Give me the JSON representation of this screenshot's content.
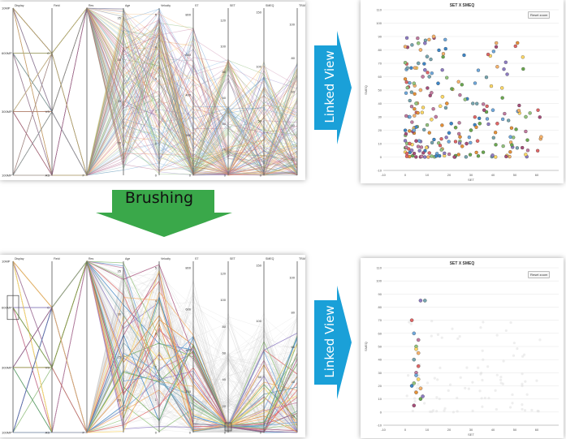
{
  "parallel_coords": {
    "axes": [
      "Display",
      "Field",
      "Res",
      "Age",
      "Velocity",
      "ST",
      "SET",
      "SMEQ",
      "TRANSL"
    ],
    "display_labels": [
      "10MP",
      "600MP",
      "300MP",
      "100MP"
    ],
    "field_labels": [
      "C",
      "VS",
      "AS"
    ],
    "res_label": "F",
    "age_ticks": [
      "35",
      "30",
      "25",
      "20"
    ],
    "velocity_ticks": [
      "5",
      "4",
      "3",
      "2",
      "1",
      "0"
    ],
    "st_ticks": [
      "800",
      "600",
      "400",
      "200",
      "0"
    ],
    "set_ticks": [
      "120",
      "100",
      "80",
      "60",
      "40",
      "20",
      "0"
    ],
    "smeq_ticks": [
      "150",
      "100",
      "50",
      "0"
    ],
    "transl_ticks": [
      "100",
      "80",
      "60",
      "40",
      "20"
    ]
  },
  "arrows": {
    "linked_view_top": "Linked View",
    "linked_view_bottom": "Linked View",
    "brushing": "Brushing",
    "colors": {
      "linked": "#1aa0d8",
      "brushing": "#3aa84a"
    }
  },
  "scatter_top": {
    "title": "SET X SMEQ",
    "reset_label": "Reset zoom",
    "ylabel": "SMEQ",
    "xlabel": "SET",
    "y_ticks": [
      "110",
      "100",
      "90",
      "80",
      "70",
      "60",
      "50",
      "40",
      "30",
      "20",
      "10",
      "0",
      "-10"
    ],
    "x_ticks": [
      "-10",
      "0",
      "10",
      "20",
      "30",
      "40",
      "50",
      "60"
    ]
  },
  "scatter_bottom": {
    "title": "SET X SMEQ",
    "reset_label": "Reset zoom",
    "ylabel": "SMEQ",
    "xlabel": "SET",
    "y_ticks": [
      "110",
      "100",
      "90",
      "80",
      "70",
      "60",
      "50",
      "40",
      "30",
      "20",
      "10",
      "0",
      "-10"
    ],
    "x_ticks": [
      "-10",
      "0",
      "10",
      "20",
      "30",
      "40",
      "50",
      "60"
    ]
  },
  "chart_data": [
    {
      "type": "scatter",
      "title": "SET X SMEQ",
      "xlabel": "SET",
      "ylabel": "SMEQ",
      "xlim": [
        -10,
        70
      ],
      "ylim": [
        -10,
        110
      ],
      "series": [
        {
          "x": [
            2,
            4,
            5,
            7,
            9,
            11,
            14,
            17,
            21,
            25,
            30,
            36,
            42,
            48,
            55,
            62,
            3,
            6,
            8,
            12,
            15,
            19,
            23,
            28,
            33,
            40,
            6,
            7,
            9,
            10,
            12,
            16,
            20,
            26,
            34,
            5,
            11,
            2,
            4,
            13
          ],
          "y": [
            10,
            20,
            40,
            50,
            85,
            60,
            30,
            45,
            25,
            15,
            20,
            35,
            25,
            15,
            30,
            15,
            5,
            70,
            60,
            28,
            55,
            40,
            22,
            10,
            12,
            35,
            85,
            80,
            65,
            75,
            48,
            38,
            18,
            8,
            25,
            12,
            3,
            30,
            55,
            90
          ]
        }
      ]
    },
    {
      "type": "scatter",
      "title": "SET X SMEQ",
      "xlabel": "SET",
      "ylabel": "SMEQ",
      "xlim": [
        -10,
        70
      ],
      "ylim": [
        -10,
        110
      ],
      "series": [
        {
          "x": [
            3,
            4,
            5,
            6,
            7,
            4,
            5,
            6,
            3,
            5,
            7,
            4,
            6,
            5,
            4,
            7,
            8,
            9,
            6,
            5
          ],
          "y": [
            70,
            60,
            50,
            45,
            85,
            40,
            30,
            25,
            20,
            15,
            10,
            5,
            35,
            28,
            22,
            18,
            12,
            85,
            55,
            48
          ]
        }
      ]
    }
  ]
}
